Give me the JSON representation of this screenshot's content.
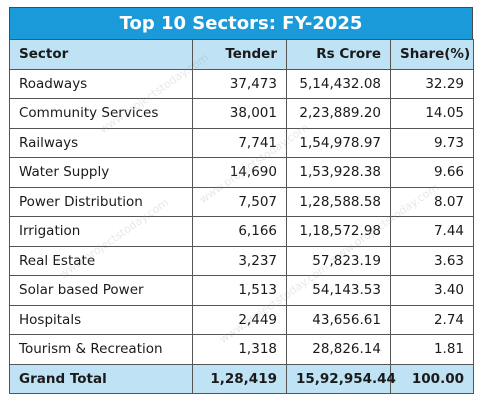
{
  "title": "Top 10 Sectors: FY-2025",
  "columns": [
    "Sector",
    "Tender",
    "Rs Crore",
    "Share(%)"
  ],
  "rows": [
    {
      "sector": "Roadways",
      "tender": "37,473",
      "crore": "5,14,432.08",
      "share": "32.29"
    },
    {
      "sector": "Community Services",
      "tender": "38,001",
      "crore": "2,23,889.20",
      "share": "14.05"
    },
    {
      "sector": "Railways",
      "tender": "7,741",
      "crore": "1,54,978.97",
      "share": "9.73"
    },
    {
      "sector": "Water Supply",
      "tender": "14,690",
      "crore": "1,53,928.38",
      "share": "9.66"
    },
    {
      "sector": "Power Distribution",
      "tender": "7,507",
      "crore": "1,28,588.58",
      "share": "8.07"
    },
    {
      "sector": "Irrigation",
      "tender": "6,166",
      "crore": "1,18,572.98",
      "share": "7.44"
    },
    {
      "sector": "Real Estate",
      "tender": "3,237",
      "crore": "57,823.19",
      "share": "3.63"
    },
    {
      "sector": "Solar based Power",
      "tender": "1,513",
      "crore": "54,143.53",
      "share": "3.40"
    },
    {
      "sector": "Hospitals",
      "tender": "2,449",
      "crore": "43,656.61",
      "share": "2.74"
    },
    {
      "sector": "Tourism & Recreation",
      "tender": "1,318",
      "crore": "28,826.14",
      "share": "1.81"
    }
  ],
  "total": {
    "label": "Grand Total",
    "tender": "1,28,419",
    "crore": "15,92,954.44",
    "share": "100.00"
  },
  "watermark": "www.projectstoday.com",
  "colors": {
    "title_bg": "#1a9ad9",
    "header_bg": "#bfe2f4",
    "border": "#555555"
  }
}
